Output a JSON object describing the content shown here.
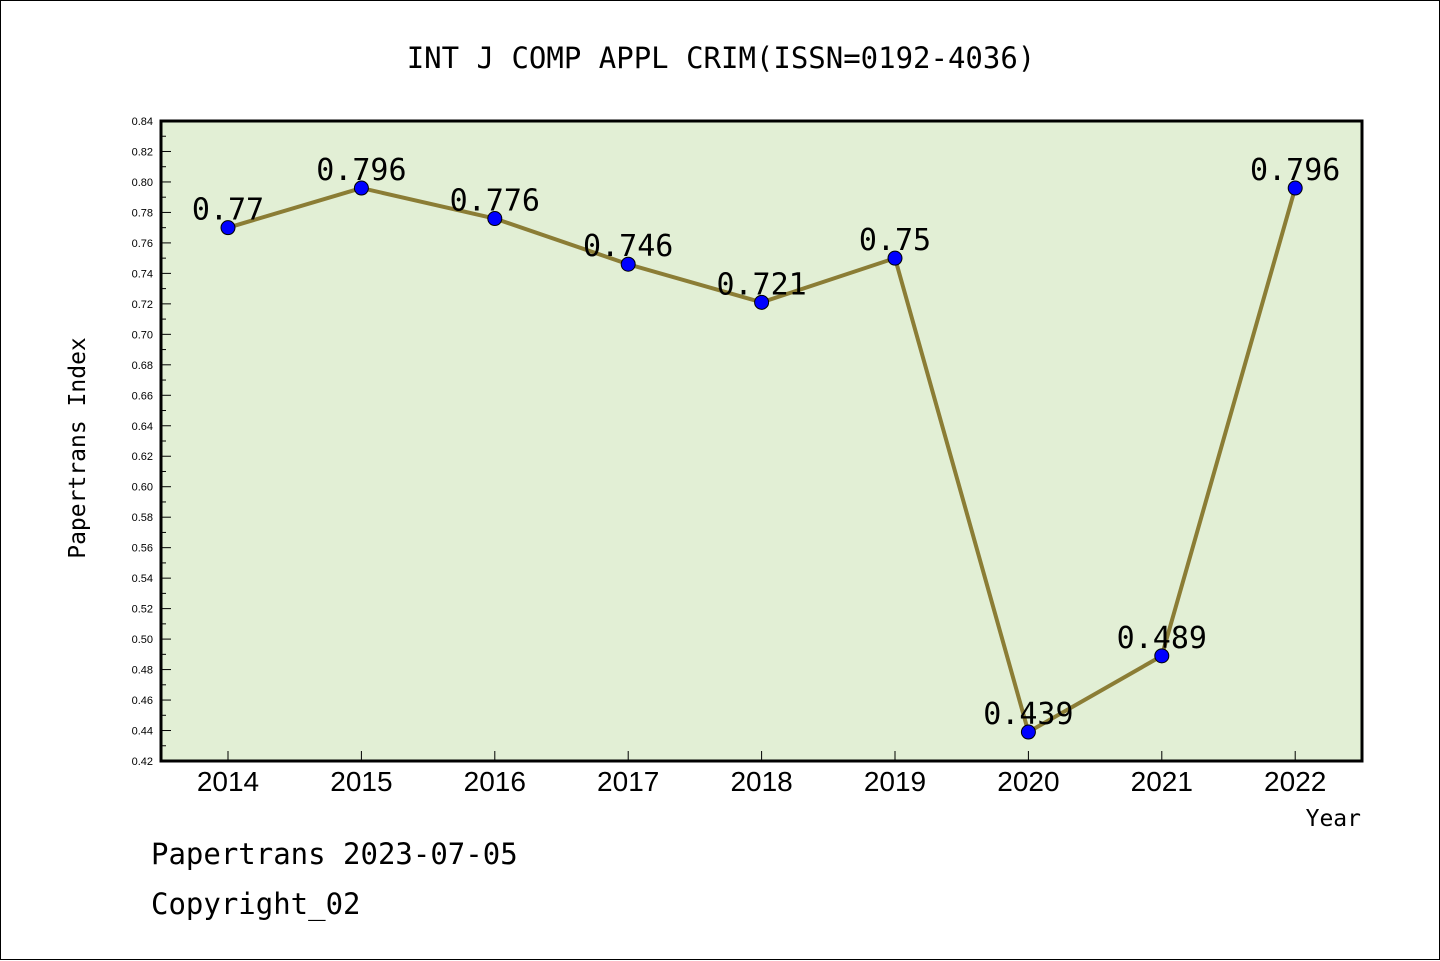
{
  "chart_data": {
    "type": "line",
    "title": "INT J COMP APPL CRIM(ISSN=0192-4036)",
    "xlabel": "Year",
    "ylabel": "Papertrans Index",
    "categories": [
      "2014",
      "2015",
      "2016",
      "2017",
      "2018",
      "2019",
      "2020",
      "2021",
      "2022"
    ],
    "values": [
      0.77,
      0.796,
      0.776,
      0.746,
      0.721,
      0.75,
      0.439,
      0.489,
      0.796
    ],
    "data_labels": [
      "0.77",
      "0.796",
      "0.776",
      "0.746",
      "0.721",
      "0.75",
      "0.439",
      "0.489",
      "0.796"
    ],
    "ylim": [
      0.42,
      0.84
    ],
    "yticks": [
      "0.42",
      "0.44",
      "0.46",
      "0.48",
      "0.50",
      "0.52",
      "0.54",
      "0.56",
      "0.58",
      "0.60",
      "0.62",
      "0.64",
      "0.66",
      "0.68",
      "0.70",
      "0.72",
      "0.74",
      "0.76",
      "0.78",
      "0.80",
      "0.82",
      "0.84"
    ],
    "grid": false,
    "colors": {
      "plot_background": "#e2efd5",
      "line": "#8b7d35",
      "marker": "#0000ff"
    }
  },
  "footer": {
    "line1": "Papertrans 2023-07-05",
    "line2": "Copyright_02"
  }
}
